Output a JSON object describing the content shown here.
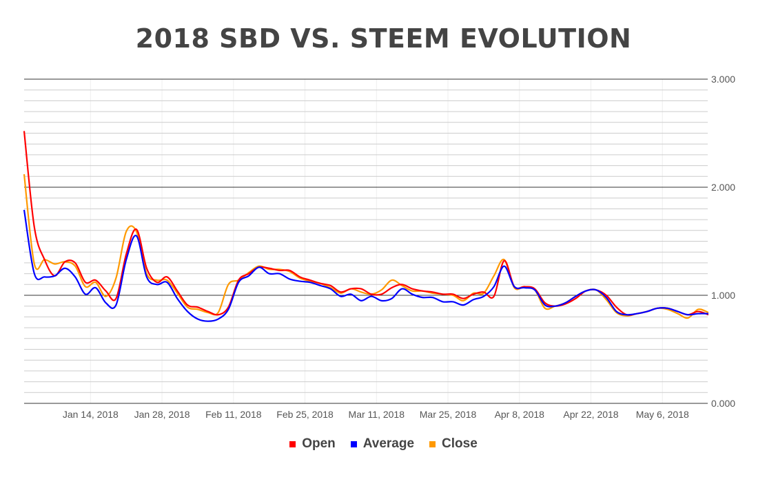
{
  "chart_data": {
    "type": "line",
    "title": "2018 SBD VS. STEEM EVOLUTION",
    "xlabel": "",
    "ylabel": "",
    "ylim": [
      0,
      3
    ],
    "y_ticks": [
      "0.000",
      "1.000",
      "2.000",
      "3.000"
    ],
    "y_axis_side": "right",
    "grid": true,
    "legend_position": "bottom",
    "x_start": "2018-01-01",
    "x_step_days": 2,
    "x_ticks": [
      {
        "date": "2018-01-14",
        "label": "Jan 14, 2018"
      },
      {
        "date": "2018-01-28",
        "label": "Jan 28, 2018"
      },
      {
        "date": "2018-02-11",
        "label": "Feb 11, 2018"
      },
      {
        "date": "2018-02-25",
        "label": "Feb 25, 2018"
      },
      {
        "date": "2018-03-11",
        "label": "Mar 11, 2018"
      },
      {
        "date": "2018-03-25",
        "label": "Mar 25, 2018"
      },
      {
        "date": "2018-04-08",
        "label": "Apr 8, 2018"
      },
      {
        "date": "2018-04-22",
        "label": "Apr 22, 2018"
      },
      {
        "date": "2018-05-06",
        "label": "May 6, 2018"
      }
    ],
    "series": [
      {
        "name": "Open",
        "color": "#ff0000",
        "values": [
          2.52,
          1.63,
          1.33,
          1.18,
          1.31,
          1.3,
          1.12,
          1.14,
          1.04,
          0.97,
          1.38,
          1.61,
          1.25,
          1.12,
          1.17,
          1.04,
          0.91,
          0.89,
          0.85,
          0.82,
          0.89,
          1.14,
          1.2,
          1.26,
          1.25,
          1.23,
          1.23,
          1.17,
          1.14,
          1.11,
          1.09,
          1.03,
          1.06,
          1.06,
          1.01,
          1.01,
          1.07,
          1.1,
          1.06,
          1.04,
          1.03,
          1.01,
          1.01,
          0.97,
          1.01,
          1.03,
          0.99,
          1.32,
          1.08,
          1.08,
          1.06,
          0.93,
          0.9,
          0.92,
          0.97,
          1.04,
          1.05,
          1.0,
          0.89,
          0.82,
          0.83,
          0.85,
          0.88,
          0.88,
          0.85,
          0.82,
          0.85,
          0.82
        ]
      },
      {
        "name": "Average",
        "color": "#0000ff",
        "values": [
          1.79,
          1.2,
          1.17,
          1.18,
          1.25,
          1.17,
          1.01,
          1.07,
          0.93,
          0.91,
          1.33,
          1.55,
          1.17,
          1.1,
          1.12,
          0.97,
          0.85,
          0.78,
          0.76,
          0.78,
          0.87,
          1.12,
          1.18,
          1.26,
          1.2,
          1.2,
          1.15,
          1.13,
          1.12,
          1.09,
          1.06,
          0.99,
          1.01,
          0.95,
          0.99,
          0.95,
          0.97,
          1.06,
          1.01,
          0.98,
          0.98,
          0.94,
          0.94,
          0.91,
          0.96,
          0.99,
          1.08,
          1.27,
          1.08,
          1.07,
          1.05,
          0.91,
          0.9,
          0.93,
          0.99,
          1.04,
          1.05,
          0.98,
          0.85,
          0.82,
          0.83,
          0.85,
          0.88,
          0.88,
          0.85,
          0.82,
          0.83,
          0.83
        ]
      },
      {
        "name": "Close",
        "color": "#ff9900",
        "values": [
          2.12,
          1.29,
          1.33,
          1.29,
          1.31,
          1.27,
          1.08,
          1.12,
          0.99,
          1.16,
          1.59,
          1.59,
          1.2,
          1.14,
          1.14,
          1.02,
          0.89,
          0.87,
          0.84,
          0.84,
          1.1,
          1.14,
          1.21,
          1.27,
          1.24,
          1.24,
          1.22,
          1.16,
          1.13,
          1.11,
          1.07,
          1.02,
          1.06,
          1.03,
          1.01,
          1.05,
          1.14,
          1.09,
          1.04,
          1.04,
          1.02,
          1.01,
          1.0,
          0.95,
          1.02,
          1.02,
          1.18,
          1.33,
          1.07,
          1.08,
          1.05,
          0.88,
          0.9,
          0.93,
          0.99,
          1.04,
          1.05,
          0.96,
          0.84,
          0.81,
          0.83,
          0.85,
          0.88,
          0.87,
          0.83,
          0.79,
          0.87,
          0.84
        ]
      }
    ]
  }
}
